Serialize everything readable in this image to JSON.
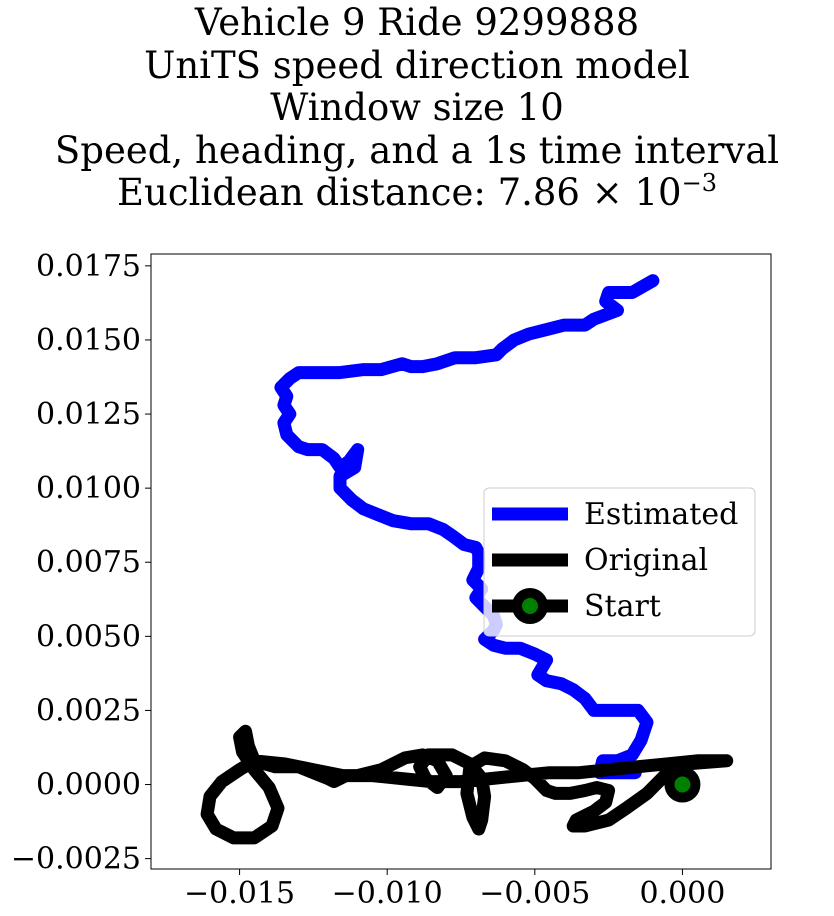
{
  "title": {
    "line1": "Vehicle 9 Ride 9299888",
    "line2": "UniTS speed direction model",
    "line3": "Window size 10",
    "line4": "Speed, heading, and a 1s time interval",
    "line5_prefix": "Euclidean distance: 7.86 × 10",
    "line5_exponent": "−3"
  },
  "colors": {
    "estimated": "#0000ff",
    "original": "#000000",
    "start_marker_fill": "#008000",
    "start_marker_edge": "#000000"
  },
  "chart_data": {
    "type": "line",
    "grid": false,
    "legend_placement": "center-right",
    "xlim": [
      -0.018,
      0.003
    ],
    "ylim": [
      -0.00285,
      0.0179
    ],
    "x_ticks": [
      -0.015,
      -0.01,
      -0.005,
      0.0
    ],
    "x_tick_labels": [
      "−0.015",
      "−0.010",
      "−0.005",
      "0.000"
    ],
    "y_ticks": [
      -0.0025,
      0.0,
      0.0025,
      0.005,
      0.0075,
      0.01,
      0.0125,
      0.015,
      0.0175
    ],
    "y_tick_labels": [
      "−0.0025",
      "0.0000",
      "0.0025",
      "0.0050",
      "0.0075",
      "0.0100",
      "0.0125",
      "0.0150",
      "0.0175"
    ],
    "series": [
      {
        "name": "Estimated",
        "points": [
          [
            -0.001,
            0.017
          ],
          [
            -0.0017,
            0.0166
          ],
          [
            -0.0025,
            0.0166
          ],
          [
            -0.0026,
            0.0163
          ],
          [
            -0.0022,
            0.016
          ],
          [
            -0.003,
            0.0157
          ],
          [
            -0.0033,
            0.0155
          ],
          [
            -0.004,
            0.0155
          ],
          [
            -0.0048,
            0.0153
          ],
          [
            -0.0052,
            0.0152
          ],
          [
            -0.0057,
            0.015
          ],
          [
            -0.0061,
            0.0147
          ],
          [
            -0.0063,
            0.0145
          ],
          [
            -0.007,
            0.0144
          ],
          [
            -0.0077,
            0.0144
          ],
          [
            -0.0083,
            0.0142
          ],
          [
            -0.0088,
            0.0141
          ],
          [
            -0.0092,
            0.0141
          ],
          [
            -0.0095,
            0.0142
          ],
          [
            -0.0102,
            0.014
          ],
          [
            -0.0108,
            0.014
          ],
          [
            -0.0116,
            0.0139
          ],
          [
            -0.0122,
            0.0139
          ],
          [
            -0.013,
            0.0139
          ],
          [
            -0.0133,
            0.0137
          ],
          [
            -0.0136,
            0.0134
          ],
          [
            -0.0134,
            0.0131
          ],
          [
            -0.0135,
            0.0128
          ],
          [
            -0.0133,
            0.0125
          ],
          [
            -0.0135,
            0.0122
          ],
          [
            -0.0134,
            0.0118
          ],
          [
            -0.013,
            0.0114
          ],
          [
            -0.0127,
            0.0113
          ],
          [
            -0.0122,
            0.0113
          ],
          [
            -0.0118,
            0.011
          ],
          [
            -0.0116,
            0.0107
          ],
          [
            -0.0113,
            0.0109
          ],
          [
            -0.011,
            0.0113
          ],
          [
            -0.0111,
            0.0107
          ],
          [
            -0.0116,
            0.0104
          ],
          [
            -0.0116,
            0.01
          ],
          [
            -0.0112,
            0.0096
          ],
          [
            -0.0108,
            0.0093
          ],
          [
            -0.0103,
            0.0091
          ],
          [
            -0.0098,
            0.0089
          ],
          [
            -0.0092,
            0.0088
          ],
          [
            -0.0086,
            0.0088
          ],
          [
            -0.0081,
            0.0086
          ],
          [
            -0.0078,
            0.0084
          ],
          [
            -0.0074,
            0.0081
          ],
          [
            -0.007,
            0.008
          ],
          [
            -0.0069,
            0.0078
          ],
          [
            -0.0069,
            0.0073
          ],
          [
            -0.0071,
            0.0069
          ],
          [
            -0.0068,
            0.0066
          ],
          [
            -0.007,
            0.0063
          ],
          [
            -0.0067,
            0.006
          ],
          [
            -0.0064,
            0.0057
          ],
          [
            -0.0063,
            0.0054
          ],
          [
            -0.0064,
            0.0052
          ],
          [
            -0.0067,
            0.0049
          ],
          [
            -0.0064,
            0.0047
          ],
          [
            -0.006,
            0.0046
          ],
          [
            -0.0055,
            0.0046
          ],
          [
            -0.005,
            0.0044
          ],
          [
            -0.0046,
            0.0042
          ],
          [
            -0.0049,
            0.0037
          ],
          [
            -0.0046,
            0.0035
          ],
          [
            -0.0041,
            0.0034
          ],
          [
            -0.0037,
            0.0032
          ],
          [
            -0.0033,
            0.0029
          ],
          [
            -0.003,
            0.0025
          ],
          [
            -0.0025,
            0.0025
          ],
          [
            -0.002,
            0.0025
          ],
          [
            -0.0015,
            0.0025
          ],
          [
            -0.0012,
            0.0021
          ],
          [
            -0.0014,
            0.0015
          ],
          [
            -0.0017,
            0.001
          ],
          [
            -0.0022,
            0.0008
          ],
          [
            -0.0027,
            0.0008
          ],
          [
            -0.0028,
            0.0004
          ],
          [
            -0.0022,
            0.0004
          ],
          [
            -0.0016,
            0.0004
          ]
        ]
      },
      {
        "name": "Original",
        "points": [
          [
            0.0015,
            0.0008
          ],
          [
            0.0005,
            0.0008
          ],
          [
            -0.0005,
            0.0007
          ],
          [
            -0.0015,
            0.0006
          ],
          [
            -0.0025,
            0.0005
          ],
          [
            -0.0035,
            0.0004
          ],
          [
            -0.0045,
            0.0004
          ],
          [
            -0.0055,
            0.0003
          ],
          [
            -0.0065,
            0.0002
          ],
          [
            -0.0075,
            0.0001
          ],
          [
            -0.0085,
            0.0001
          ],
          [
            -0.0095,
            0.0002
          ],
          [
            -0.0105,
            0.0003
          ],
          [
            -0.0115,
            0.0003
          ],
          [
            -0.0125,
            0.0005
          ],
          [
            -0.0135,
            0.0007
          ],
          [
            -0.0145,
            0.0008
          ],
          [
            -0.015,
            0.0005
          ],
          [
            -0.0156,
            0.0001
          ],
          [
            -0.016,
            -0.0004
          ],
          [
            -0.0161,
            -0.001
          ],
          [
            -0.0158,
            -0.0015
          ],
          [
            -0.0152,
            -0.0018
          ],
          [
            -0.0145,
            -0.0018
          ],
          [
            -0.0139,
            -0.0014
          ],
          [
            -0.0137,
            -0.0008
          ],
          [
            -0.014,
            -0.0001
          ],
          [
            -0.0145,
            0.0005
          ],
          [
            -0.0149,
            0.0011
          ],
          [
            -0.015,
            0.0016
          ],
          [
            -0.0148,
            0.0018
          ],
          [
            -0.0147,
            0.0013
          ],
          [
            -0.0145,
            0.0008
          ],
          [
            -0.0138,
            0.0006
          ],
          [
            -0.013,
            0.0006
          ],
          [
            -0.0125,
            0.0004
          ],
          [
            -0.012,
            0.0002
          ],
          [
            -0.0118,
            0.0001
          ],
          [
            -0.0114,
            0.0003
          ],
          [
            -0.011,
            0.0003
          ],
          [
            -0.0102,
            0.0005
          ],
          [
            -0.0094,
            0.0009
          ],
          [
            -0.0088,
            0.001
          ],
          [
            -0.0083,
            0.0008
          ],
          [
            -0.008,
            0.0003
          ],
          [
            -0.0083,
            -0.0001
          ],
          [
            -0.0087,
            0.0002
          ],
          [
            -0.0089,
            0.0006
          ],
          [
            -0.0086,
            0.001
          ],
          [
            -0.0078,
            0.001
          ],
          [
            -0.0072,
            0.0007
          ],
          [
            -0.0068,
            0.0002
          ],
          [
            -0.0067,
            -0.0004
          ],
          [
            -0.0068,
            -0.0012
          ],
          [
            -0.0069,
            -0.0015
          ],
          [
            -0.0071,
            -0.0011
          ],
          [
            -0.0073,
            -0.0003
          ],
          [
            -0.0072,
            0.0006
          ],
          [
            -0.0067,
            0.0009
          ],
          [
            -0.006,
            0.0008
          ],
          [
            -0.0054,
            0.0005
          ],
          [
            -0.005,
            0.0002
          ],
          [
            -0.0046,
            -0.0002
          ],
          [
            -0.0043,
            -0.0003
          ],
          [
            -0.0038,
            -0.0003
          ],
          [
            -0.0033,
            -0.0002
          ],
          [
            -0.0029,
            -0.0001
          ],
          [
            -0.0025,
            -0.0002
          ],
          [
            -0.0026,
            -0.0006
          ],
          [
            -0.003,
            -0.0009
          ],
          [
            -0.0036,
            -0.0012
          ],
          [
            -0.0037,
            -0.0014
          ],
          [
            -0.0033,
            -0.0014
          ],
          [
            -0.0025,
            -0.0012
          ],
          [
            -0.0019,
            -0.0008
          ],
          [
            -0.0012,
            -0.0003
          ],
          [
            -0.0006,
            0.0003
          ],
          [
            0.0002,
            0.0007
          ],
          [
            0.0015,
            0.0008
          ]
        ]
      }
    ],
    "start_point": {
      "label": "Start",
      "x": 0.0,
      "y": 0.0
    },
    "legend_entries": [
      "Estimated",
      "Original",
      "Start"
    ]
  }
}
